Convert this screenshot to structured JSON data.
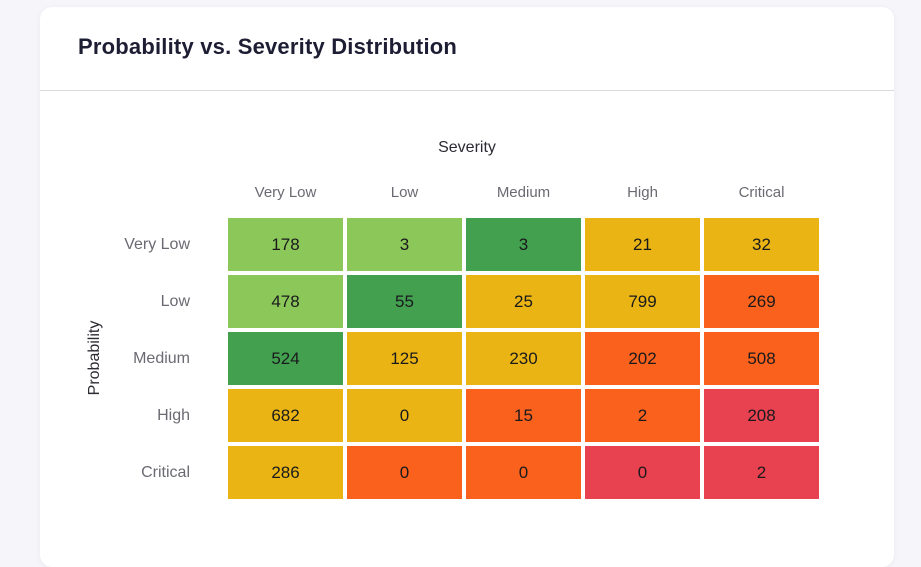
{
  "card": {
    "title": "Probability vs. Severity Distribution"
  },
  "chart_data": {
    "type": "heatmap",
    "title": "Probability vs. Severity Distribution",
    "xlabel": "Severity",
    "ylabel": "Probability",
    "columns": [
      "Very Low",
      "Low",
      "Medium",
      "High",
      "Critical"
    ],
    "rows": [
      "Very Low",
      "Low",
      "Medium",
      "High",
      "Critical"
    ],
    "values": [
      [
        178,
        3,
        3,
        21,
        32
      ],
      [
        478,
        55,
        25,
        799,
        269
      ],
      [
        524,
        125,
        230,
        202,
        508
      ],
      [
        682,
        0,
        15,
        2,
        208
      ],
      [
        286,
        0,
        0,
        0,
        2
      ]
    ],
    "cell_colors": [
      [
        "lightgreen",
        "lightgreen",
        "green",
        "yellow",
        "yellow"
      ],
      [
        "lightgreen",
        "green",
        "yellow",
        "yellow",
        "orange"
      ],
      [
        "green",
        "yellow",
        "yellow",
        "orange",
        "orange"
      ],
      [
        "yellow",
        "yellow",
        "orange",
        "orange",
        "red"
      ],
      [
        "yellow",
        "orange",
        "orange",
        "red",
        "red"
      ]
    ],
    "palette": {
      "lightgreen": "#8cc75a",
      "green": "#43a04f",
      "yellow": "#eab514",
      "orange": "#f9611c",
      "red": "#e8414f"
    },
    "legend": "none",
    "grid_gap_color": "#ffffff"
  }
}
